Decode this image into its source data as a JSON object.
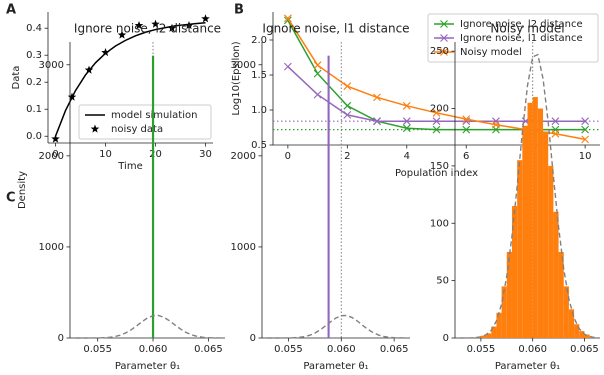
{
  "chart_data": [
    {
      "type": "line",
      "panel_label": "A",
      "xlabel": "Time",
      "ylabel": "Data",
      "xlim": [
        -1.5,
        31.5
      ],
      "ylim": [
        -0.025,
        0.46
      ],
      "xticks": [
        0,
        10,
        20,
        30
      ],
      "yticks": [
        {
          "value": 0,
          "label": "0.0"
        },
        0.1,
        0.2,
        0.3,
        0.4
      ],
      "legend": "lower right",
      "series": [
        {
          "name": "model simulation",
          "color": "#000000",
          "style": "line",
          "x": [
            0,
            2,
            4,
            6,
            8,
            10,
            12,
            14,
            16,
            18,
            20,
            22,
            24,
            26,
            28,
            30
          ],
          "values": [
            0,
            0.095,
            0.169,
            0.227,
            0.272,
            0.307,
            0.334,
            0.355,
            0.372,
            0.385,
            0.395,
            0.402,
            0.409,
            0.413,
            0.417,
            0.42
          ]
        },
        {
          "name": "noisy data",
          "color": "#000000",
          "style": "marker",
          "marker": "star",
          "x": [
            0,
            3.3,
            6.7,
            10,
            13.3,
            16.7,
            20,
            23.3,
            26.7,
            30
          ],
          "values": [
            -0.01,
            0.145,
            0.245,
            0.31,
            0.375,
            0.41,
            0.415,
            0.4,
            0.41,
            0.435
          ]
        }
      ]
    },
    {
      "type": "line",
      "panel_label": "B",
      "xlabel": "Population index",
      "ylabel": "Log10(Epsilon)",
      "xlim": [
        -0.5,
        10.5
      ],
      "ylim": [
        0.5,
        2.4
      ],
      "xticks": [
        0,
        2,
        4,
        6,
        8,
        10
      ],
      "yticks": [
        0.5,
        {
          "value": 1,
          "label": "1.0"
        },
        1.5,
        {
          "value": 2,
          "label": "2.0"
        }
      ],
      "legend": "upper right",
      "x": [
        0,
        1,
        2,
        3,
        4,
        5,
        6,
        7,
        8,
        9,
        10
      ],
      "series": [
        {
          "name": "Ignore noise, l2 distance",
          "color": "#2ca02c",
          "style": "line",
          "marker": "x",
          "values": [
            2.28,
            1.52,
            1.06,
            0.84,
            0.74,
            0.72,
            0.72,
            0.72,
            0.72,
            0.72,
            0.72
          ]
        },
        {
          "name": "Ignore noise, l1 distance",
          "color": "#9467bd",
          "style": "line",
          "marker": "x",
          "values": [
            1.62,
            1.22,
            0.93,
            0.84,
            0.84,
            0.84,
            0.84,
            0.84,
            0.84,
            0.84,
            0.84
          ]
        },
        {
          "name": "Noisy model",
          "color": "#ff7f0e",
          "style": "line",
          "marker": "x",
          "values": [
            2.31,
            1.64,
            1.34,
            1.18,
            1.06,
            0.96,
            0.87,
            0.79,
            0.72,
            0.66,
            0.58
          ]
        }
      ],
      "hlines": [
        {
          "value": 0.84,
          "color": "#9467bd"
        },
        {
          "value": 0.72,
          "color": "#2ca02c"
        }
      ]
    },
    {
      "type": "histogram",
      "panel_label": "C",
      "title": "Ignore noise, l2 distance",
      "xlabel": "Parameter θ₁",
      "ylabel": "Density",
      "xlim": [
        0.0525,
        0.0665
      ],
      "ylim": [
        0,
        3250
      ],
      "xticks": [
        0.055,
        {
          "value": 0.06,
          "label": "0.060"
        },
        0.065
      ],
      "yticks": [
        0,
        1000,
        2000,
        3000
      ],
      "bins": [
        0.0599,
        0.0601
      ],
      "values": [
        3100
      ],
      "color": "#2ca02c",
      "vlines": [
        {
          "value": 0.06,
          "color": "#808080"
        }
      ],
      "prior": {
        "color": "#808080",
        "x": [
          0.053,
          0.0535,
          0.054,
          0.0545,
          0.055,
          0.0555,
          0.056,
          0.0565,
          0.057,
          0.0575,
          0.058,
          0.0585,
          0.059,
          0.0595,
          0.06,
          0.0605,
          0.061,
          0.0615,
          0.062,
          0.0625,
          0.063,
          0.0635,
          0.064,
          0.0645,
          0.065,
          0.0655,
          0.066
        ],
        "values": [
          0,
          0.03,
          0.1,
          0.35,
          1,
          2.8,
          6.7,
          14.8,
          29.6,
          53.9,
          88.7,
          132,
          179,
          220,
          245,
          247,
          226,
          188,
          141,
          96.8,
          60,
          33.7,
          17.2,
          8,
          3.3,
          1.3,
          0.4
        ]
      }
    },
    {
      "type": "histogram",
      "title": "Ignore noise, l1 distance",
      "xlabel": "Parameter θ₁",
      "xlim": [
        0.0525,
        0.0665
      ],
      "ylim": [
        0,
        3250
      ],
      "xticks": [
        0.055,
        {
          "value": 0.06,
          "label": "0.060"
        },
        0.065
      ],
      "yticks": [
        0,
        1000,
        2000,
        3000
      ],
      "bins": [
        0.0587,
        0.0589
      ],
      "values": [
        3100
      ],
      "color": "#9467bd",
      "vlines": [
        {
          "value": 0.06,
          "color": "#808080"
        }
      ],
      "prior": {
        "color": "#808080",
        "x": [
          0.053,
          0.0535,
          0.054,
          0.0545,
          0.055,
          0.0555,
          0.056,
          0.0565,
          0.057,
          0.0575,
          0.058,
          0.0585,
          0.059,
          0.0595,
          0.06,
          0.0605,
          0.061,
          0.0615,
          0.062,
          0.0625,
          0.063,
          0.0635,
          0.064,
          0.0645,
          0.065,
          0.0655,
          0.066
        ],
        "values": [
          0,
          0.03,
          0.1,
          0.35,
          1,
          2.8,
          6.7,
          14.8,
          29.6,
          53.9,
          88.7,
          132,
          179,
          220,
          245,
          247,
          226,
          188,
          141,
          96.8,
          60,
          33.7,
          17.2,
          8,
          3.3,
          1.3,
          0.4
        ]
      }
    },
    {
      "type": "histogram",
      "title": "Noisy model",
      "xlabel": "Parameter θ₁",
      "xlim": [
        0.0525,
        0.0665
      ],
      "ylim": [
        0,
        258
      ],
      "xticks": [
        0.055,
        {
          "value": 0.06,
          "label": "0.060"
        },
        0.065
      ],
      "yticks": [
        0,
        50,
        100,
        150,
        200,
        250
      ],
      "bins": [
        0.0545,
        0.055,
        0.0555,
        0.056,
        0.0565,
        0.057,
        0.0575,
        0.058,
        0.0585,
        0.059,
        0.0595,
        0.06,
        0.0605,
        0.061,
        0.0615,
        0.062,
        0.0625,
        0.063,
        0.0635,
        0.064,
        0.0645,
        0.065,
        0.0655,
        0.066
      ],
      "values": [
        1,
        2,
        4,
        10,
        22,
        45,
        75,
        115,
        155,
        185,
        205,
        210,
        200,
        180,
        150,
        110,
        75,
        45,
        25,
        12,
        6,
        3,
        1
      ],
      "color": "#ff7f0e",
      "vlines": [
        {
          "value": 0.06,
          "color": "#808080"
        }
      ],
      "prior": {
        "color": "#808080",
        "x": [
          0.053,
          0.0535,
          0.054,
          0.0545,
          0.055,
          0.0555,
          0.056,
          0.0565,
          0.057,
          0.0575,
          0.058,
          0.0585,
          0.059,
          0.0595,
          0.06,
          0.0605,
          0.061,
          0.0615,
          0.062,
          0.0625,
          0.063,
          0.0635,
          0.064,
          0.0645,
          0.065,
          0.0655,
          0.066
        ],
        "values": [
          0,
          0.03,
          0.1,
          0.35,
          1,
          2.8,
          6.7,
          14.8,
          29.6,
          53.9,
          88.7,
          132,
          179,
          220,
          245,
          247,
          226,
          188,
          141,
          96.8,
          60,
          33.7,
          17.2,
          8,
          3.3,
          1.3,
          0.4
        ]
      }
    }
  ]
}
